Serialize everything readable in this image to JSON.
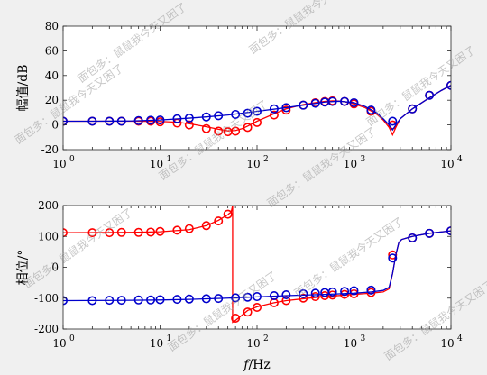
{
  "chart_data": [
    {
      "type": "line",
      "xscale": "log",
      "xlim": [
        1,
        10000
      ],
      "ylim": [
        -20,
        80
      ],
      "grid": false,
      "xlabel": "",
      "ylabel": "幅值/dB",
      "xticks": [
        {
          "value": 1,
          "base": "10",
          "exp": "0"
        },
        {
          "value": 10,
          "base": "10",
          "exp": "1"
        },
        {
          "value": 100,
          "base": "10",
          "exp": "2"
        },
        {
          "value": 1000,
          "base": "10",
          "exp": "3"
        },
        {
          "value": 10000,
          "base": "10",
          "exp": "4"
        }
      ],
      "yticks": [
        "80",
        "60",
        "40",
        "20",
        "0",
        "-20"
      ],
      "series": [
        {
          "color": "#ff0000",
          "style": "line",
          "x": [
            1,
            2,
            5,
            10,
            15,
            20,
            30,
            40,
            50,
            60,
            70,
            80,
            100,
            150,
            200,
            300,
            400,
            500,
            600,
            700,
            800,
            1000,
            1300,
            1700,
            2000,
            2300,
            2500,
            2700,
            3000,
            4000,
            6000,
            8000,
            10000
          ],
          "y": [
            3,
            3,
            3,
            2.8,
            2.2,
            1,
            -1.5,
            -3.5,
            -4.8,
            -4.5,
            -3,
            -1,
            3,
            9,
            13,
            16.5,
            18,
            19,
            19.5,
            19.3,
            18.8,
            17,
            14,
            9,
            4,
            -2,
            -8,
            -2,
            5,
            13,
            22,
            28,
            32
          ]
        },
        {
          "color": "#ff0000",
          "style": "markers",
          "x": [
            1,
            2,
            3,
            4,
            6,
            8,
            10,
            15,
            20,
            30,
            40,
            50,
            60,
            80,
            100,
            150,
            200,
            300,
            400,
            500,
            600,
            800,
            1000,
            1500,
            2500,
            4000,
            6000,
            10000
          ],
          "y": [
            3,
            3,
            3,
            3,
            3,
            3,
            2.5,
            1.5,
            0,
            -3,
            -5,
            -5.5,
            -5,
            -2,
            2,
            8,
            12,
            16,
            18,
            19,
            19.5,
            19,
            17,
            11,
            0,
            13,
            24,
            32
          ]
        },
        {
          "color": "#0000cc",
          "style": "line",
          "x": [
            1,
            2,
            5,
            10,
            20,
            30,
            50,
            100,
            200,
            300,
            500,
            700,
            1000,
            1300,
            1700,
            2000,
            2300,
            2500,
            2700,
            3000,
            4000,
            6000,
            8000,
            10000
          ],
          "y": [
            3,
            3,
            3.2,
            4,
            5.5,
            6.5,
            8,
            11,
            14,
            16,
            18.5,
            19.2,
            18,
            15,
            10,
            5,
            0,
            -4,
            0,
            5,
            13,
            22,
            28,
            32
          ]
        },
        {
          "color": "#0000cc",
          "style": "markers",
          "x": [
            1,
            2,
            3,
            4,
            6,
            8,
            10,
            15,
            20,
            30,
            40,
            60,
            80,
            100,
            150,
            200,
            300,
            400,
            500,
            600,
            800,
            1000,
            1500,
            2500,
            4000,
            6000,
            10000
          ],
          "y": [
            3,
            3,
            3,
            3,
            3.5,
            3.8,
            4,
            5,
            5.5,
            6.5,
            7.5,
            8.5,
            9.5,
            11,
            13,
            14,
            16,
            17.5,
            18.5,
            19,
            19,
            18,
            12,
            3,
            13,
            24,
            32
          ]
        }
      ]
    },
    {
      "type": "line",
      "xscale": "log",
      "xlim": [
        1,
        10000
      ],
      "ylim": [
        -200,
        200
      ],
      "grid": false,
      "xlabel_italic": "f",
      "xlabel": "/Hz",
      "ylabel": "相位/°",
      "xticks": [
        {
          "value": 1,
          "base": "10",
          "exp": "0"
        },
        {
          "value": 10,
          "base": "10",
          "exp": "1"
        },
        {
          "value": 100,
          "base": "10",
          "exp": "2"
        },
        {
          "value": 1000,
          "base": "10",
          "exp": "3"
        },
        {
          "value": 10000,
          "base": "10",
          "exp": "4"
        }
      ],
      "yticks": [
        "200",
        "100",
        "0",
        "-100",
        "-200"
      ],
      "series": [
        {
          "color": "#ff0000",
          "style": "line",
          "x": [
            1,
            5,
            10,
            20,
            30,
            40,
            45,
            50,
            52,
            54,
            56,
            60,
            70,
            80,
            100,
            150,
            200,
            300,
            500,
            1000,
            1500,
            2000,
            2300,
            2500,
            2700,
            2900,
            3100,
            3500,
            4000,
            6000,
            10000
          ],
          "y": [
            112,
            113,
            115,
            122,
            135,
            152,
            162,
            170,
            175,
            178,
            -178,
            -172,
            -155,
            -140,
            -128,
            -115,
            -108,
            -102,
            -95,
            -88,
            -84,
            -80,
            -70,
            -20,
            40,
            80,
            90,
            95,
            100,
            110,
            118
          ]
        },
        {
          "color": "#ff0000",
          "style": "markers",
          "x": [
            1,
            2,
            3,
            4,
            6,
            8,
            10,
            15,
            20,
            30,
            40,
            50,
            60,
            80,
            100,
            150,
            200,
            300,
            400,
            500,
            600,
            800,
            1000,
            1500,
            2500,
            4000,
            6000,
            10000
          ],
          "y": [
            112,
            112,
            112,
            113,
            113,
            114,
            116,
            120,
            125,
            135,
            150,
            172,
            -165,
            -145,
            -130,
            -115,
            -108,
            -100,
            -95,
            -92,
            -90,
            -88,
            -86,
            -82,
            40,
            95,
            110,
            118
          ]
        },
        {
          "color": "#0000cc",
          "style": "line",
          "x": [
            1,
            5,
            10,
            20,
            50,
            100,
            200,
            500,
            1000,
            1500,
            2000,
            2300,
            2500,
            2700,
            2900,
            3100,
            3500,
            4000,
            6000,
            10000
          ],
          "y": [
            -108,
            -107,
            -106,
            -104,
            -100,
            -96,
            -92,
            -88,
            -84,
            -80,
            -75,
            -65,
            -20,
            40,
            80,
            90,
            95,
            100,
            110,
            118
          ]
        },
        {
          "color": "#0000cc",
          "style": "markers",
          "x": [
            1,
            2,
            3,
            4,
            6,
            8,
            10,
            15,
            20,
            30,
            40,
            60,
            80,
            100,
            150,
            200,
            300,
            400,
            500,
            600,
            800,
            1000,
            1500,
            2500,
            4000,
            6000,
            10000
          ],
          "y": [
            -108,
            -108,
            -107,
            -107,
            -106,
            -106,
            -105,
            -104,
            -103,
            -102,
            -101,
            -99,
            -97,
            -95,
            -92,
            -89,
            -86,
            -84,
            -82,
            -80,
            -78,
            -76,
            -74,
            30,
            95,
            110,
            118
          ]
        }
      ]
    }
  ],
  "watermark": "面包多：鼠鼠我今天又困了"
}
